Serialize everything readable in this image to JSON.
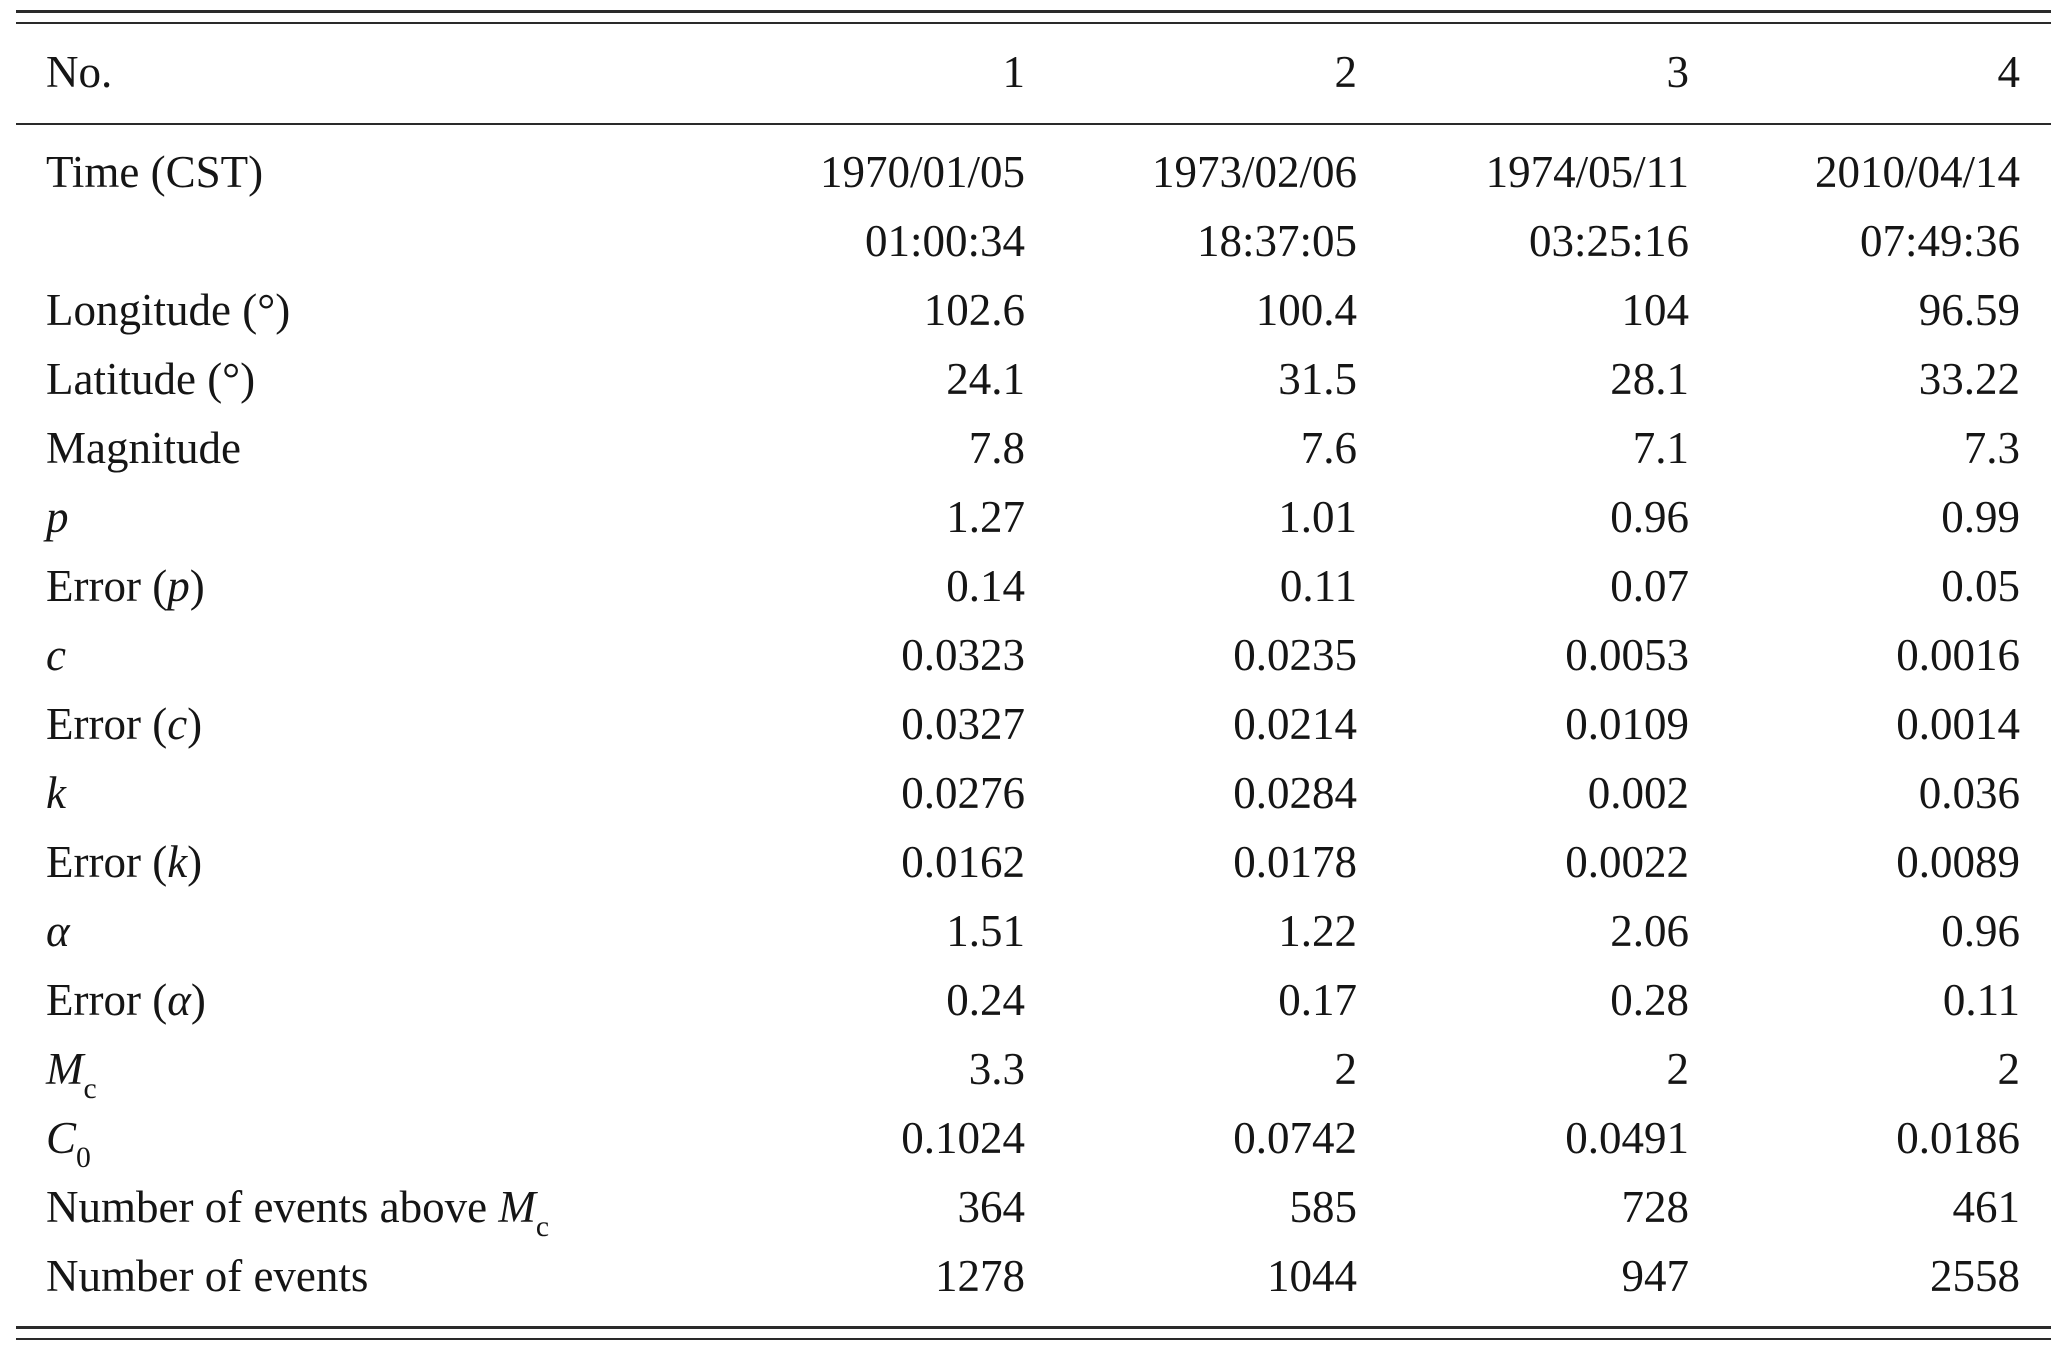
{
  "table": {
    "header": {
      "label": "No.",
      "cols": [
        "1",
        "2",
        "3",
        "4"
      ]
    },
    "time": {
      "label": "Time (CST)",
      "values": [
        {
          "date": "1970/01/05",
          "time": "01:00:34"
        },
        {
          "date": "1973/02/06",
          "time": "18:37:05"
        },
        {
          "date": "1974/05/11",
          "time": "03:25:16"
        },
        {
          "date": "2010/04/14",
          "time": "07:49:36"
        }
      ]
    },
    "rows": [
      {
        "pre": "Longitude (°)",
        "values": [
          "102.6",
          "100.4",
          "104",
          "96.59"
        ]
      },
      {
        "pre": "Latitude (°)",
        "values": [
          "24.1",
          "31.5",
          "28.1",
          "33.22"
        ]
      },
      {
        "pre": "Magnitude",
        "values": [
          "7.8",
          "7.6",
          "7.1",
          "7.3"
        ]
      },
      {
        "it": "p",
        "values": [
          "1.27",
          "1.01",
          "0.96",
          "0.99"
        ]
      },
      {
        "pre": "Error (",
        "it": "p",
        "post": ")",
        "values": [
          "0.14",
          "0.11",
          "0.07",
          "0.05"
        ]
      },
      {
        "it": "c",
        "values": [
          "0.0323",
          "0.0235",
          "0.0053",
          "0.0016"
        ]
      },
      {
        "pre": "Error (",
        "it": "c",
        "post": ")",
        "values": [
          "0.0327",
          "0.0214",
          "0.0109",
          "0.0014"
        ]
      },
      {
        "it": "k",
        "values": [
          "0.0276",
          "0.0284",
          "0.002",
          "0.036"
        ]
      },
      {
        "pre": "Error (",
        "it": "k",
        "post": ")",
        "values": [
          "0.0162",
          "0.0178",
          "0.0022",
          "0.0089"
        ]
      },
      {
        "it": "α",
        "values": [
          "1.51",
          "1.22",
          "2.06",
          "0.96"
        ]
      },
      {
        "pre": "Error (",
        "it": "α",
        "post": ")",
        "values": [
          "0.24",
          "0.17",
          "0.28",
          "0.11"
        ]
      },
      {
        "it": "M",
        "sub": "c",
        "values": [
          "3.3",
          "2",
          "2",
          "2"
        ]
      },
      {
        "it": "C",
        "sub": "0",
        "values": [
          "0.1024",
          "0.0742",
          "0.0491",
          "0.0186"
        ]
      },
      {
        "pre": "Number of events above ",
        "it": "M",
        "sub": "c",
        "values": [
          "364",
          "585",
          "728",
          "461"
        ]
      },
      {
        "pre": "Number of events",
        "values": [
          "1278",
          "1044",
          "947",
          "2558"
        ]
      }
    ]
  }
}
